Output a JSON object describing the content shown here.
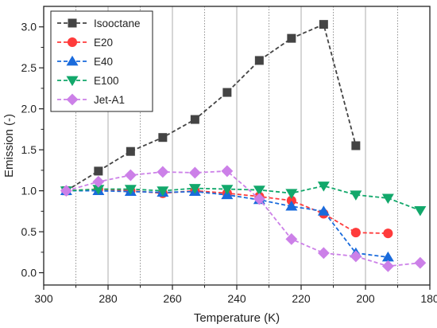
{
  "chart_data": {
    "type": "line",
    "title": "",
    "xlabel": "Temperature (K)",
    "ylabel": "Emission (-)",
    "xlim": [
      300,
      180
    ],
    "ylim": [
      -0.15,
      3.25
    ],
    "x_reversed": true,
    "x_ticks": [
      300,
      280,
      260,
      240,
      220,
      200,
      180
    ],
    "y_ticks": [
      0.0,
      0.5,
      1.0,
      1.5,
      2.0,
      2.5,
      3.0
    ],
    "x_tick_labels": [
      "300",
      "280",
      "260",
      "240",
      "220",
      "200",
      "180"
    ],
    "y_tick_labels": [
      "0.0",
      "0.5",
      "1.0",
      "1.5",
      "2.0",
      "2.5",
      "3.0"
    ],
    "grid": "vertical dotted",
    "legend_position": "top-left",
    "series": [
      {
        "name": "Isooctane",
        "color": "#444444",
        "marker": "square",
        "x": [
          293,
          283,
          273,
          263,
          253,
          243,
          233,
          223,
          213,
          203
        ],
        "y": [
          1.0,
          1.24,
          1.48,
          1.65,
          1.87,
          2.2,
          2.59,
          2.86,
          3.03,
          1.55
        ]
      },
      {
        "name": "E20",
        "color": "#ff3b3b",
        "marker": "circle",
        "x": [
          293,
          283,
          273,
          263,
          253,
          243,
          233,
          223,
          213,
          203,
          193
        ],
        "y": [
          1.0,
          1.02,
          1.0,
          0.97,
          1.0,
          0.97,
          0.93,
          0.88,
          0.72,
          0.49,
          0.48
        ]
      },
      {
        "name": "E40",
        "color": "#1a6bdc",
        "marker": "triangle-up",
        "x": [
          293,
          283,
          273,
          263,
          253,
          243,
          233,
          223,
          213,
          203,
          193
        ],
        "y": [
          1.0,
          1.0,
          0.99,
          0.98,
          0.99,
          0.95,
          0.89,
          0.81,
          0.75,
          0.24,
          0.19
        ]
      },
      {
        "name": "E100",
        "color": "#12a86b",
        "marker": "triangle-down",
        "x": [
          293,
          283,
          273,
          263,
          253,
          243,
          233,
          223,
          213,
          203,
          193,
          183
        ],
        "y": [
          1.0,
          1.02,
          1.02,
          1.0,
          1.03,
          1.02,
          1.01,
          0.97,
          1.06,
          0.95,
          0.91,
          0.76
        ]
      },
      {
        "name": "Jet-A1",
        "color": "#cc80e8",
        "marker": "diamond",
        "x": [
          293,
          283,
          273,
          263,
          253,
          243,
          233,
          223,
          213,
          203,
          193,
          183
        ],
        "y": [
          1.0,
          1.11,
          1.19,
          1.23,
          1.22,
          1.24,
          0.9,
          0.41,
          0.24,
          0.2,
          0.08,
          0.12
        ]
      }
    ]
  }
}
